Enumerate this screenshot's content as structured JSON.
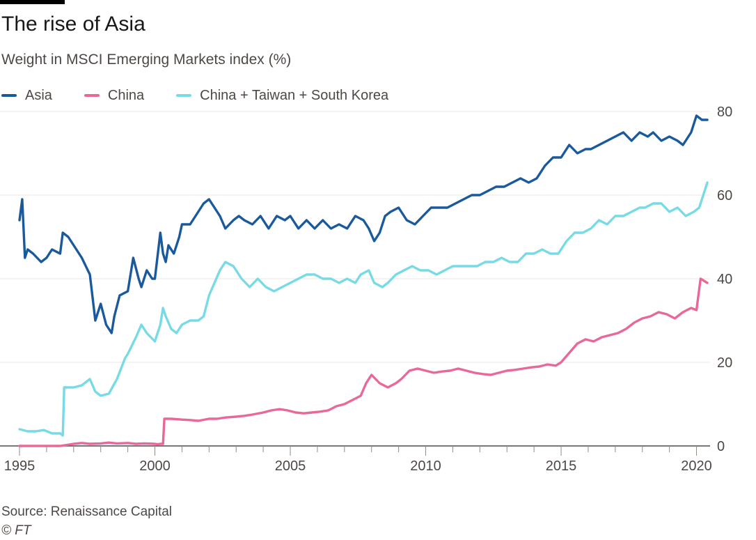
{
  "title": "The rise of Asia",
  "subtitle": "Weight in MSCI Emerging Markets index (%)",
  "source": "Source: Renaissance Capital",
  "credit": "© FT",
  "colors": {
    "asia": "#1a5a9c",
    "china": "#e8689a",
    "cts": "#77dbe6",
    "grid": "#e9e7e6",
    "axis": "#4d4845",
    "text": "#4d4845"
  },
  "chart_data": {
    "type": "line",
    "title": "The rise of Asia",
    "subtitle": "Weight in MSCI Emerging Markets index (%)",
    "xlabel": "",
    "ylabel": "",
    "xlim": [
      1995,
      2020.5
    ],
    "ylim": [
      0,
      80
    ],
    "x_ticks": [
      1995,
      2000,
      2005,
      2010,
      2015,
      2020
    ],
    "x_tick_labels": [
      "1995",
      "2000",
      "2005",
      "2010",
      "2015",
      "2020"
    ],
    "y_ticks": [
      0,
      20,
      40,
      60,
      80
    ],
    "y_tick_labels": [
      "0",
      "20",
      "40",
      "60",
      "80"
    ],
    "y_axis_side": "right",
    "grid": "horizontal",
    "legend_position": "top",
    "series": [
      {
        "name": "Asia",
        "color": "#1a5a9c",
        "x": [
          1995.0,
          1995.1,
          1995.2,
          1995.3,
          1995.5,
          1995.8,
          1996.0,
          1996.2,
          1996.5,
          1996.6,
          1996.8,
          1997.0,
          1997.3,
          1997.6,
          1997.8,
          1998.0,
          1998.2,
          1998.4,
          1998.5,
          1998.7,
          1999.0,
          1999.2,
          1999.4,
          1999.5,
          1999.7,
          1999.9,
          2000.0,
          2000.2,
          2000.3,
          2000.4,
          2000.5,
          2000.7,
          2000.9,
          2001.0,
          2001.3,
          2001.5,
          2001.8,
          2002.0,
          2002.2,
          2002.4,
          2002.6,
          2002.9,
          2003.1,
          2003.3,
          2003.6,
          2003.9,
          2004.2,
          2004.5,
          2004.8,
          2005.0,
          2005.3,
          2005.6,
          2005.9,
          2006.2,
          2006.5,
          2006.8,
          2007.1,
          2007.4,
          2007.7,
          2007.9,
          2008.1,
          2008.3,
          2008.5,
          2008.7,
          2009.0,
          2009.3,
          2009.6,
          2009.9,
          2010.2,
          2010.5,
          2010.8,
          2011.1,
          2011.4,
          2011.7,
          2012.0,
          2012.3,
          2012.6,
          2012.9,
          2013.2,
          2013.5,
          2013.8,
          2014.1,
          2014.4,
          2014.7,
          2015.0,
          2015.3,
          2015.6,
          2015.9,
          2016.1,
          2016.4,
          2016.7,
          2017.0,
          2017.3,
          2017.6,
          2017.9,
          2018.2,
          2018.4,
          2018.7,
          2019.0,
          2019.3,
          2019.5,
          2019.8,
          2020.0,
          2020.2,
          2020.4
        ],
        "y": [
          54,
          59,
          45,
          47,
          46,
          44,
          45,
          47,
          46,
          51,
          50,
          48,
          45,
          41,
          30,
          34,
          29,
          27,
          31,
          36,
          37,
          45,
          40,
          38,
          42,
          40,
          40,
          51,
          46,
          44,
          48,
          46,
          50,
          53,
          53,
          55,
          58,
          59,
          57,
          55,
          52,
          54,
          55,
          54,
          53,
          55,
          52,
          55,
          54,
          55,
          52,
          54,
          52,
          54,
          52,
          53,
          52,
          55,
          54,
          52,
          49,
          51,
          55,
          56,
          57,
          54,
          53,
          55,
          57,
          57,
          57,
          58,
          59,
          60,
          60,
          61,
          62,
          62,
          63,
          64,
          63,
          64,
          67,
          69,
          69,
          72,
          70,
          71,
          71,
          72,
          73,
          74,
          75,
          73,
          75,
          74,
          75,
          73,
          74,
          73,
          72,
          75,
          79,
          78,
          78
        ]
      },
      {
        "name": "China",
        "color": "#e8689a",
        "x": [
          1995.0,
          1995.5,
          1996.0,
          1996.5,
          1997.0,
          1997.3,
          1997.6,
          1998.0,
          1998.3,
          1998.6,
          1999.0,
          1999.3,
          1999.6,
          2000.0,
          2000.1,
          2000.2,
          2000.3,
          2000.35,
          2000.6,
          2001.0,
          2001.3,
          2001.6,
          2002.0,
          2002.3,
          2002.6,
          2003.0,
          2003.3,
          2003.6,
          2004.0,
          2004.3,
          2004.6,
          2004.9,
          2005.2,
          2005.5,
          2005.8,
          2006.1,
          2006.4,
          2006.7,
          2007.0,
          2007.3,
          2007.6,
          2007.8,
          2008.0,
          2008.3,
          2008.6,
          2008.9,
          2009.1,
          2009.4,
          2009.7,
          2010.0,
          2010.3,
          2010.6,
          2010.9,
          2011.2,
          2011.5,
          2011.8,
          2012.1,
          2012.4,
          2012.7,
          2013.0,
          2013.3,
          2013.6,
          2013.9,
          2014.2,
          2014.5,
          2014.8,
          2015.0,
          2015.2,
          2015.4,
          2015.6,
          2015.9,
          2016.2,
          2016.5,
          2016.8,
          2017.1,
          2017.4,
          2017.7,
          2018.0,
          2018.3,
          2018.6,
          2018.9,
          2019.2,
          2019.5,
          2019.8,
          2020.0,
          2020.15,
          2020.4
        ],
        "y": [
          0,
          0,
          0,
          0,
          0.5,
          0.7,
          0.5,
          0.6,
          0.8,
          0.6,
          0.7,
          0.5,
          0.6,
          0.5,
          0.4,
          0.5,
          0.5,
          6.5,
          6.5,
          6.3,
          6.2,
          6,
          6.5,
          6.5,
          6.8,
          7,
          7.2,
          7.5,
          8,
          8.5,
          8.8,
          8.5,
          8,
          7.8,
          8,
          8.2,
          8.5,
          9.5,
          10,
          11,
          12,
          15,
          17,
          15,
          14,
          15,
          16,
          18,
          18.5,
          18,
          17.5,
          17.8,
          18,
          18.5,
          18,
          17.5,
          17.2,
          17,
          17.5,
          18,
          18.2,
          18.5,
          18.8,
          19,
          19.5,
          19.2,
          20,
          21.5,
          23,
          24.5,
          25.5,
          25,
          26,
          26.5,
          27,
          28,
          29.5,
          30.5,
          31,
          32,
          31.5,
          30.5,
          32,
          33,
          32.5,
          40,
          39
        ]
      },
      {
        "name": "China + Taiwan + South Korea",
        "color": "#77dbe6",
        "x": [
          1995.0,
          1995.3,
          1995.6,
          1995.9,
          1996.2,
          1996.5,
          1996.6,
          1996.65,
          1997.0,
          1997.3,
          1997.6,
          1997.8,
          1998.0,
          1998.3,
          1998.6,
          1998.9,
          1999.0,
          1999.3,
          1999.5,
          1999.7,
          2000.0,
          2000.1,
          2000.2,
          2000.3,
          2000.4,
          2000.6,
          2000.8,
          2001.0,
          2001.3,
          2001.6,
          2001.8,
          2002.0,
          2002.2,
          2002.4,
          2002.6,
          2002.9,
          2003.2,
          2003.5,
          2003.8,
          2004.1,
          2004.4,
          2004.7,
          2005.0,
          2005.3,
          2005.6,
          2005.9,
          2006.2,
          2006.5,
          2006.8,
          2007.1,
          2007.4,
          2007.6,
          2007.9,
          2008.1,
          2008.4,
          2008.6,
          2008.9,
          2009.2,
          2009.5,
          2009.8,
          2010.1,
          2010.4,
          2010.7,
          2011.0,
          2011.3,
          2011.6,
          2011.9,
          2012.2,
          2012.5,
          2012.8,
          2013.1,
          2013.4,
          2013.7,
          2014.0,
          2014.3,
          2014.6,
          2014.9,
          2015.2,
          2015.5,
          2015.8,
          2016.1,
          2016.4,
          2016.7,
          2017.0,
          2017.3,
          2017.6,
          2017.9,
          2018.1,
          2018.4,
          2018.7,
          2019.0,
          2019.3,
          2019.6,
          2019.9,
          2020.1,
          2020.4
        ],
        "y": [
          4,
          3.5,
          3.5,
          3.8,
          3,
          3,
          2.5,
          14,
          14,
          14.5,
          16,
          13,
          12,
          12.5,
          16,
          21,
          22,
          26,
          29,
          27,
          25,
          27,
          29,
          33,
          31,
          28,
          27,
          29,
          30,
          30,
          31,
          36,
          39,
          42,
          44,
          43,
          40,
          38,
          40,
          38,
          37,
          38,
          39,
          40,
          41,
          41,
          40,
          40,
          39,
          40,
          39,
          41,
          42,
          39,
          38,
          39,
          41,
          42,
          43,
          42,
          42,
          41,
          42,
          43,
          43,
          43,
          43,
          44,
          44,
          45,
          44,
          44,
          46,
          46,
          47,
          46,
          46,
          49,
          51,
          51,
          52,
          54,
          53,
          55,
          55,
          56,
          57,
          57,
          58,
          58,
          56,
          57,
          55,
          56,
          57,
          63
        ]
      }
    ]
  }
}
